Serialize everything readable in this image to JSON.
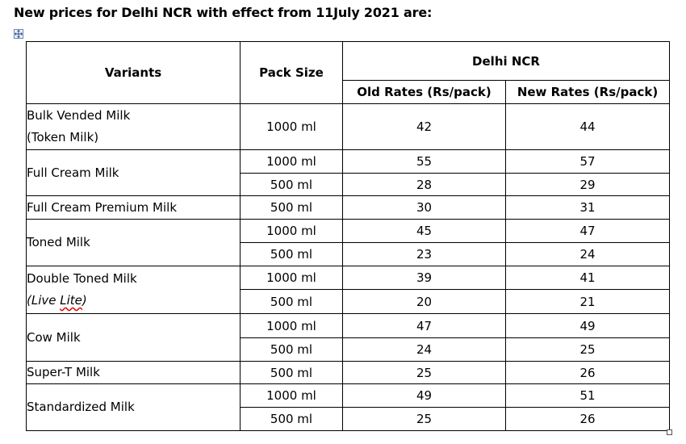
{
  "heading": "New prices for Delhi NCR with effect from 11July 2021 are:",
  "table": {
    "headers": {
      "variants": "Variants",
      "pack_size": "Pack Size",
      "region": "Delhi NCR",
      "old_rates": "Old Rates (Rs/pack)",
      "new_rates": "New Rates (Rs/pack)"
    },
    "groups": [
      {
        "variant_line1": "Bulk Vended Milk",
        "variant_line2": "(Token Milk)",
        "rows": [
          {
            "pack": "1000 ml",
            "old": "42",
            "new": "44"
          }
        ]
      },
      {
        "variant": "Full Cream Milk",
        "rows": [
          {
            "pack": "1000 ml",
            "old": "55",
            "new": "57"
          },
          {
            "pack": "500 ml",
            "old": "28",
            "new": "29"
          }
        ]
      },
      {
        "variant": "Full Cream Premium Milk",
        "rows": [
          {
            "pack": "500 ml",
            "old": "30",
            "new": "31"
          }
        ]
      },
      {
        "variant": "Toned Milk",
        "rows": [
          {
            "pack": "1000 ml",
            "old": "45",
            "new": "47"
          },
          {
            "pack": "500 ml",
            "old": "23",
            "new": "24"
          }
        ]
      },
      {
        "variant_line1": "Double Toned Milk",
        "variant_line2_a": "(Live ",
        "variant_line2_b": "Lite",
        "variant_line2_c": ")",
        "rows": [
          {
            "pack": "1000 ml",
            "old": "39",
            "new": "41"
          },
          {
            "pack": "500 ml",
            "old": "20",
            "new": "21"
          }
        ]
      },
      {
        "variant": "Cow Milk",
        "rows": [
          {
            "pack": "1000 ml",
            "old": "47",
            "new": "49"
          },
          {
            "pack": "500 ml",
            "old": "24",
            "new": "25"
          }
        ]
      },
      {
        "variant": "Super-T Milk",
        "rows": [
          {
            "pack": "500 ml",
            "old": "25",
            "new": "26"
          }
        ]
      },
      {
        "variant": "Standardized Milk",
        "rows": [
          {
            "pack": "1000 ml",
            "old": "49",
            "new": "51"
          },
          {
            "pack": "500 ml",
            "old": "25",
            "new": "26"
          }
        ]
      }
    ]
  }
}
